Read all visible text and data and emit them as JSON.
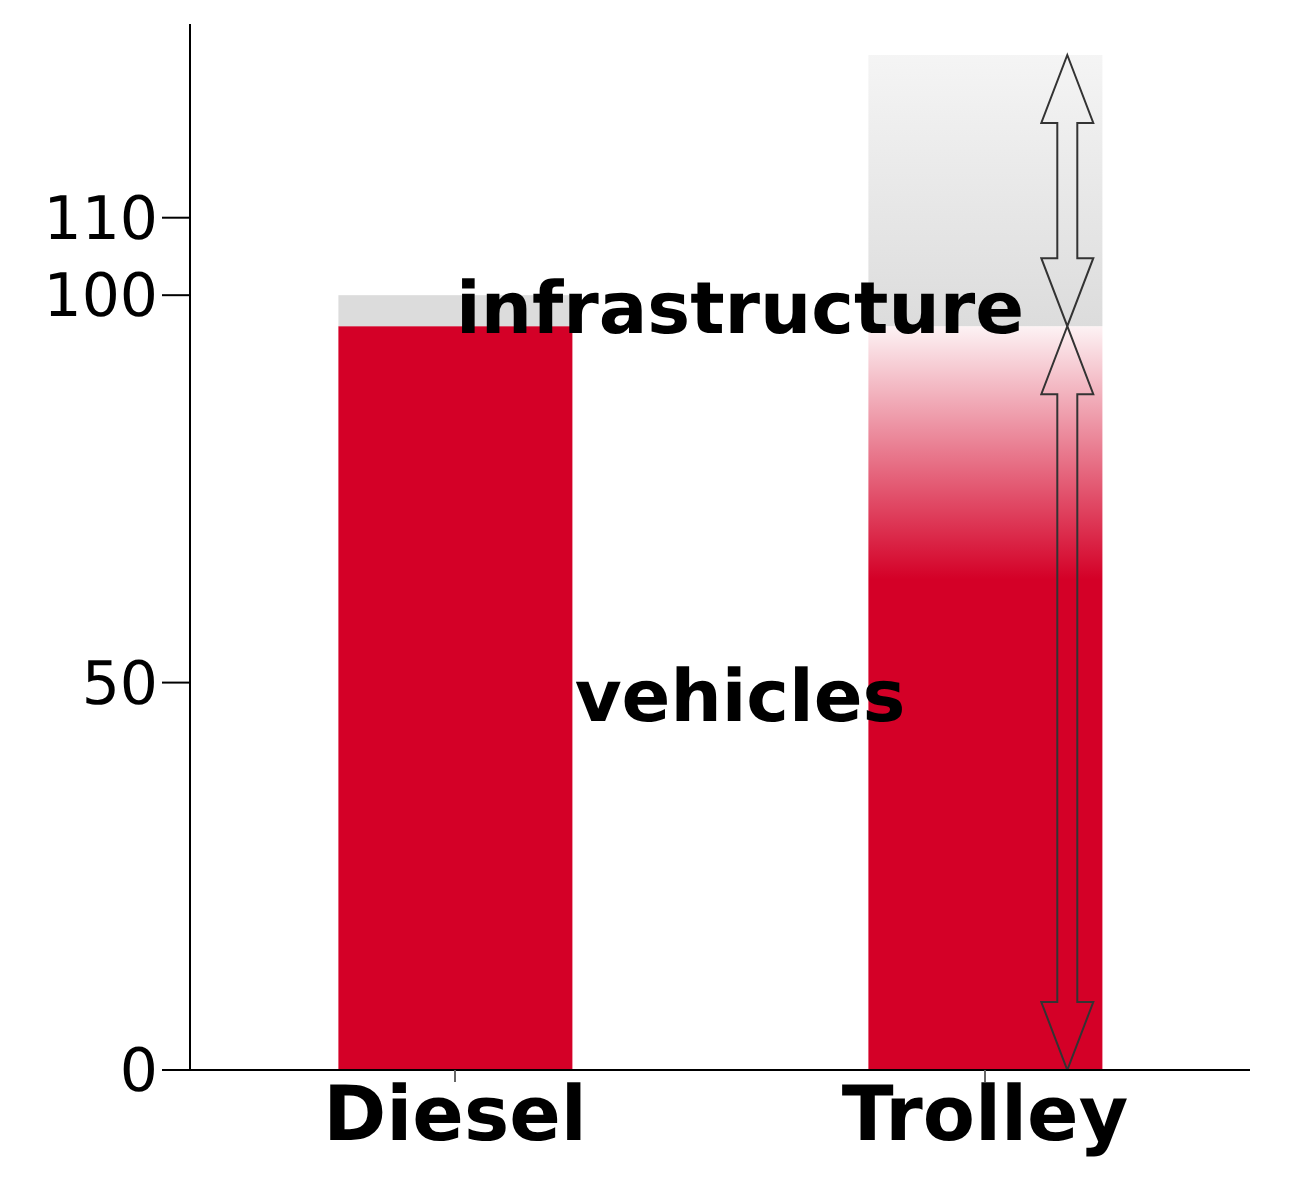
{
  "chart_data": {
    "type": "bar",
    "stacked": true,
    "categories": [
      "Diesel",
      "Trolley"
    ],
    "series": [
      {
        "name": "vehicles",
        "color": "#d40027",
        "values": [
          96,
          96
        ]
      },
      {
        "name": "infrastructure",
        "color": "#dcdcdc",
        "values": [
          4,
          35
        ]
      }
    ],
    "ylim": [
      0,
      135
    ],
    "yticks": [
      0,
      50,
      100,
      110
    ]
  }
}
